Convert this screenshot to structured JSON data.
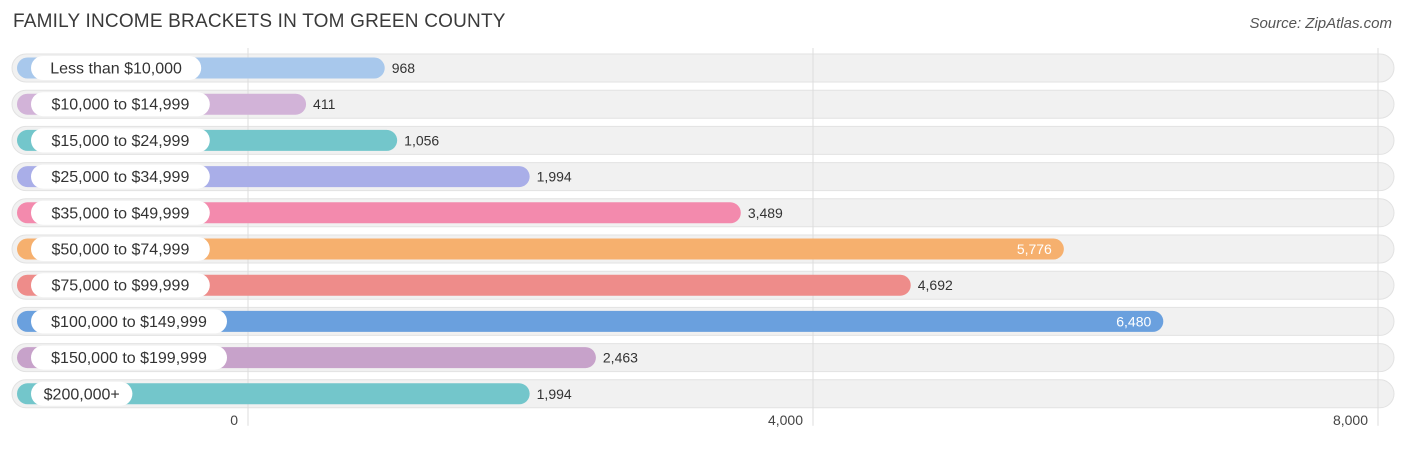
{
  "title": "FAMILY INCOME BRACKETS IN TOM GREEN COUNTY",
  "source": "Source: ZipAtlas.com",
  "chart_data": {
    "type": "bar",
    "orientation": "horizontal",
    "title": "FAMILY INCOME BRACKETS IN TOM GREEN COUNTY",
    "xlabel": "",
    "ylabel": "",
    "xlim": [
      0,
      8000
    ],
    "x_ticks": [
      0,
      4000,
      8000
    ],
    "x_tick_labels": [
      "0",
      "4,000",
      "8,000"
    ],
    "grid": true,
    "categories": [
      "Less than $10,000",
      "$10,000 to $14,999",
      "$15,000 to $24,999",
      "$25,000 to $34,999",
      "$35,000 to $49,999",
      "$50,000 to $74,999",
      "$75,000 to $99,999",
      "$100,000 to $149,999",
      "$150,000 to $199,999",
      "$200,000+"
    ],
    "values": [
      968,
      411,
      1056,
      1994,
      3489,
      5776,
      4692,
      6480,
      2463,
      1994
    ],
    "value_labels": [
      "968",
      "411",
      "1,056",
      "1,994",
      "3,489",
      "5,776",
      "4,692",
      "6,480",
      "2,463",
      "1,994"
    ],
    "colors": [
      "#a8c8ec",
      "#d2b3d8",
      "#73c6cb",
      "#a9aee8",
      "#f38aad",
      "#f6b06e",
      "#ee8c8a",
      "#6aa0de",
      "#c7a2ca",
      "#73c6cb"
    ]
  }
}
